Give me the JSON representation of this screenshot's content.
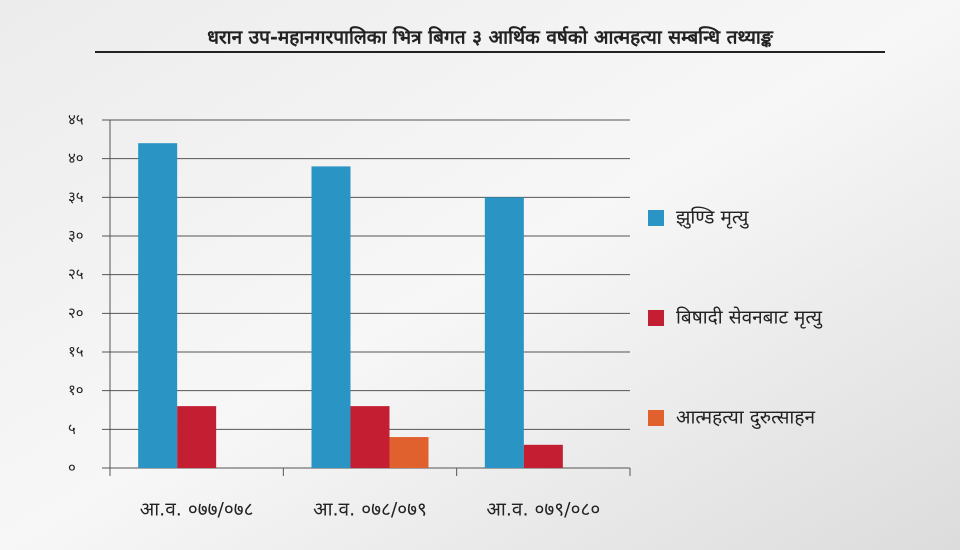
{
  "chart_data": {
    "type": "bar",
    "title": "धरान उप-महानगरपालिका भित्र बिगत ३ आर्थिक वर्षको आत्महत्या सम्बन्धि तथ्याङ्क",
    "categories": [
      "आ.व. ०७७/०७८",
      "आ.व. ०७८/०७९",
      "आ.व. ०७९/०८०"
    ],
    "series": [
      {
        "name": "झुण्डि मृत्यु",
        "color": "#2a94c4",
        "values": [
          42,
          39,
          35
        ]
      },
      {
        "name": "बिषादी सेवनबाट मृत्यु",
        "color": "#c41e32",
        "values": [
          8,
          8,
          3
        ]
      },
      {
        "name": "आत्महत्या दुरुत्साहन",
        "color": "#e0602e",
        "values": [
          null,
          4,
          null
        ]
      }
    ],
    "ylim": [
      0,
      45
    ],
    "yticks": [
      {
        "value": 0,
        "label": "०"
      },
      {
        "value": 5,
        "label": "५"
      },
      {
        "value": 10,
        "label": "१०"
      },
      {
        "value": 15,
        "label": "१५"
      },
      {
        "value": 20,
        "label": "२०"
      },
      {
        "value": 25,
        "label": "२५"
      },
      {
        "value": 30,
        "label": "३०"
      },
      {
        "value": 35,
        "label": "३५"
      },
      {
        "value": 40,
        "label": "४०"
      },
      {
        "value": 45,
        "label": "४५"
      }
    ],
    "grid": true,
    "legend": "right"
  }
}
